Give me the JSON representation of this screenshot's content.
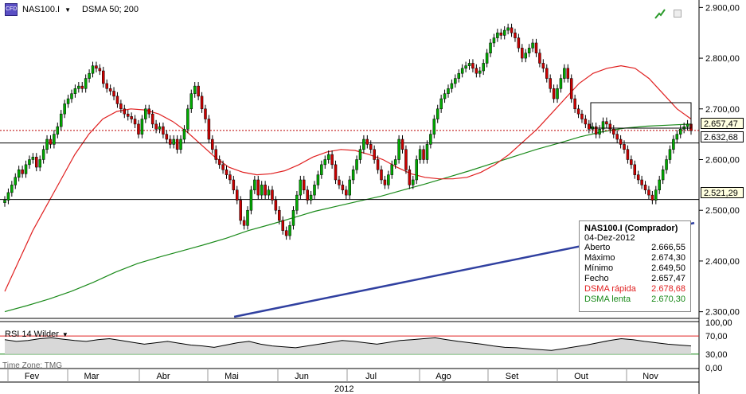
{
  "header": {
    "symbol": "NAS100.I",
    "indicator": "DSMA 50; 200",
    "icon_text": "CFD"
  },
  "rsi": {
    "label": "RSI 14 Wilder",
    "levels": [
      70,
      30
    ],
    "axis": [
      "100,00",
      "70,00",
      "30,00",
      "0,00"
    ]
  },
  "timezone": "Time Zone: TMG",
  "year": "2012",
  "months": [
    "Fev",
    "Mar",
    "Abr",
    "Mai",
    "Jun",
    "Jul",
    "Ago",
    "Set",
    "Out",
    "Nov"
  ],
  "price_axis": [
    "2.900,00",
    "2.800,00",
    "2.700,00",
    "2.600,00",
    "2.500,00",
    "2.400,00",
    "2.300,00"
  ],
  "tags": {
    "last": "2.657,47",
    "line1": "2.632,68",
    "line2": "2.521,29"
  },
  "legend": {
    "title": "NAS100.I (Comprador)",
    "date": "04-Dez-2012",
    "rows": [
      {
        "label": "Aberto",
        "value": "2.666,55"
      },
      {
        "label": "Máximo",
        "value": "2.674,30"
      },
      {
        "label": "Mínimo",
        "value": "2.649,50"
      },
      {
        "label": "Fecho",
        "value": "2.657,47"
      }
    ],
    "fast_label": "DSMA rápida",
    "fast_value": "2.678,68",
    "slow_label": "DSMA lenta",
    "slow_value": "2.670,30"
  },
  "chart_data": {
    "type": "candlestick",
    "ylim": [
      2290,
      2910
    ],
    "horizontal_lines": [
      2632.68,
      2521.29
    ],
    "last_price": 2657.47,
    "colors": {
      "up": "#00aa00",
      "down": "#cc0000",
      "fast": "#e02020",
      "slow": "#1a8a1a",
      "trend": "#3040a0"
    },
    "close": [
      2520,
      2535,
      2550,
      2565,
      2580,
      2572,
      2590,
      2600,
      2605,
      2585,
      2600,
      2620,
      2640,
      2630,
      2650,
      2665,
      2690,
      2710,
      2720,
      2730,
      2740,
      2745,
      2740,
      2760,
      2770,
      2785,
      2780,
      2775,
      2750,
      2740,
      2735,
      2725,
      2710,
      2700,
      2690,
      2685,
      2680,
      2670,
      2650,
      2680,
      2700,
      2690,
      2670,
      2660,
      2665,
      2650,
      2640,
      2630,
      2640,
      2620,
      2640,
      2660,
      2700,
      2730,
      2745,
      2725,
      2700,
      2680,
      2640,
      2620,
      2600,
      2590,
      2580,
      2570,
      2560,
      2540,
      2520,
      2480,
      2470,
      2500,
      2540,
      2560,
      2530,
      2550,
      2530,
      2540,
      2520,
      2500,
      2480,
      2460,
      2450,
      2470,
      2500,
      2530,
      2560,
      2540,
      2520,
      2530,
      2550,
      2570,
      2590,
      2600,
      2610,
      2590,
      2560,
      2550,
      2540,
      2530,
      2560,
      2580,
      2600,
      2620,
      2640,
      2630,
      2620,
      2600,
      2580,
      2560,
      2550,
      2570,
      2590,
      2600,
      2640,
      2620,
      2580,
      2550,
      2560,
      2600,
      2620,
      2600,
      2630,
      2650,
      2680,
      2700,
      2720,
      2730,
      2740,
      2750,
      2760,
      2770,
      2780,
      2785,
      2790,
      2780,
      2770,
      2775,
      2790,
      2810,
      2830,
      2840,
      2850,
      2845,
      2855,
      2860,
      2850,
      2840,
      2820,
      2800,
      2810,
      2820,
      2830,
      2810,
      2790,
      2780,
      2760,
      2740,
      2720,
      2740,
      2760,
      2780,
      2760,
      2720,
      2700,
      2690,
      2680,
      2670,
      2660,
      2665,
      2650,
      2660,
      2675,
      2670,
      2660,
      2650,
      2640,
      2630,
      2620,
      2600,
      2590,
      2570,
      2560,
      2550,
      2540,
      2530,
      2520,
      2540,
      2560,
      2580,
      2600,
      2620,
      2640,
      2650,
      2660,
      2665,
      2670,
      2657
    ],
    "fast_dsma": [
      2340,
      2400,
      2460,
      2510,
      2560,
      2610,
      2650,
      2680,
      2695,
      2700,
      2698,
      2690,
      2675,
      2655,
      2630,
      2605,
      2585,
      2575,
      2570,
      2572,
      2578,
      2590,
      2605,
      2615,
      2620,
      2618,
      2610,
      2600,
      2585,
      2572,
      2565,
      2562,
      2562,
      2565,
      2575,
      2590,
      2610,
      2635,
      2660,
      2690,
      2720,
      2750,
      2770,
      2780,
      2785,
      2780,
      2760,
      2730,
      2700,
      2680
    ],
    "slow_dsma": [
      2300,
      2312,
      2325,
      2340,
      2358,
      2378,
      2395,
      2408,
      2420,
      2432,
      2445,
      2460,
      2472,
      2485,
      2498,
      2508,
      2518,
      2528,
      2540,
      2552,
      2565,
      2578,
      2592,
      2606,
      2620,
      2632,
      2645,
      2655,
      2662,
      2666,
      2668,
      2670
    ],
    "trendline": [
      [
        0.335,
        2290
      ],
      [
        1.0,
        2475
      ]
    ],
    "rsi": [
      62,
      58,
      60,
      64,
      66,
      63,
      60,
      58,
      62,
      64,
      60,
      56,
      52,
      55,
      58,
      54,
      50,
      48,
      45,
      50,
      55,
      58,
      52,
      48,
      46,
      44,
      48,
      52,
      56,
      60,
      58,
      55,
      52,
      56,
      60,
      62,
      64,
      66,
      62,
      58,
      55,
      52,
      48,
      45,
      44,
      42,
      40,
      38,
      42,
      46,
      50,
      55,
      60,
      64,
      62,
      58,
      55,
      52,
      50,
      48
    ]
  }
}
